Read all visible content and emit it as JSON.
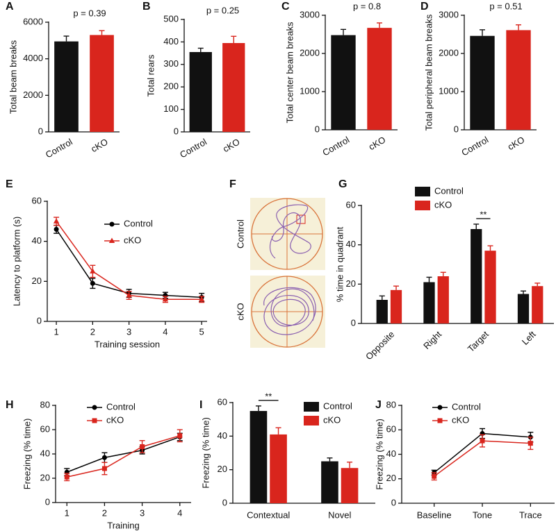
{
  "chart_data": [
    {
      "type": "bar",
      "label": "A",
      "ylabel": "Total beam breaks",
      "annotation": "p = 0.39",
      "categories": [
        "Control",
        "cKO"
      ],
      "values": [
        4950,
        5300
      ],
      "errors": [
        290,
        240
      ],
      "colors": [
        "#111111",
        "#d9251d"
      ],
      "ylim": [
        0,
        6000
      ],
      "yticks": [
        0,
        2000,
        4000,
        6000
      ]
    },
    {
      "type": "bar",
      "label": "B",
      "ylabel": "Total rears",
      "annotation": "p = 0.25",
      "categories": [
        "Control",
        "cKO"
      ],
      "values": [
        355,
        395
      ],
      "errors": [
        17,
        30
      ],
      "colors": [
        "#111111",
        "#d9251d"
      ],
      "ylim": [
        0,
        500
      ],
      "yticks": [
        0,
        100,
        200,
        300,
        400,
        500
      ]
    },
    {
      "type": "bar",
      "label": "C",
      "ylabel": "Total center beam breaks",
      "annotation": "p = 0.8",
      "categories": [
        "Control",
        "cKO"
      ],
      "values": [
        2480,
        2670
      ],
      "errors": [
        150,
        130
      ],
      "colors": [
        "#111111",
        "#d9251d"
      ],
      "ylim": [
        0,
        3000
      ],
      "yticks": [
        0,
        1000,
        2000,
        3000
      ]
    },
    {
      "type": "bar",
      "label": "D",
      "ylabel": "Total peripheral beam breaks",
      "annotation": "p = 0.51",
      "categories": [
        "Control",
        "cKO"
      ],
      "values": [
        2460,
        2610
      ],
      "errors": [
        160,
        140
      ],
      "colors": [
        "#111111",
        "#d9251d"
      ],
      "ylim": [
        0,
        3000
      ],
      "yticks": [
        0,
        1000,
        2000,
        3000
      ]
    },
    {
      "type": "line",
      "label": "E",
      "ylabel": "Latency to platform (s)",
      "xlabel": "Training session",
      "x": [
        1,
        2,
        3,
        4,
        5
      ],
      "xlim": [
        0.75,
        5.15
      ],
      "xticks": [
        1,
        2,
        3,
        4,
        5
      ],
      "series": [
        {
          "name": "Control",
          "color": "#000000",
          "marker": "circle",
          "values": [
            46,
            19,
            14,
            13,
            12
          ],
          "errors": [
            2,
            2.5,
            2,
            1.5,
            2
          ]
        },
        {
          "name": "cKO",
          "color": "#d9251d",
          "marker": "triangle",
          "values": [
            50,
            25,
            13,
            11,
            11
          ],
          "errors": [
            2,
            3,
            2,
            1.5,
            1.5
          ]
        }
      ],
      "ylim": [
        0,
        60
      ],
      "yticks": [
        0,
        20,
        40,
        60
      ]
    },
    {
      "type": "grouped_bar",
      "label": "G",
      "ylabel": "% time in quadrant",
      "annotation": "**",
      "categories": [
        "Opposite",
        "Right",
        "Target",
        "Left"
      ],
      "series": [
        {
          "name": "Control",
          "color": "#111111",
          "values": [
            12,
            21,
            48,
            15
          ],
          "errors": [
            2,
            2.5,
            2.5,
            1.5
          ]
        },
        {
          "name": "cKO",
          "color": "#d9251d",
          "values": [
            17,
            24,
            37,
            19
          ],
          "errors": [
            2,
            2,
            2.5,
            1.5
          ]
        }
      ],
      "ylim": [
        0,
        60
      ],
      "yticks": [
        0,
        20,
        40,
        60
      ]
    },
    {
      "type": "line",
      "label": "H",
      "ylabel": "Freezing (% time)",
      "xlabel": "Training",
      "x": [
        1,
        2,
        3,
        4
      ],
      "xlim": [
        0.7,
        4.3
      ],
      "xticks": [
        1,
        2,
        3,
        4
      ],
      "series": [
        {
          "name": "Control",
          "color": "#000000",
          "marker": "circle",
          "values": [
            25,
            37,
            43,
            54
          ],
          "errors": [
            3,
            4,
            3,
            3
          ]
        },
        {
          "name": "cKO",
          "color": "#d9251d",
          "marker": "square",
          "values": [
            21,
            28,
            46,
            55
          ],
          "errors": [
            3,
            5,
            5,
            5
          ]
        }
      ],
      "ylim": [
        0,
        80
      ],
      "yticks": [
        0,
        20,
        40,
        60,
        80
      ]
    },
    {
      "type": "grouped_bar",
      "label": "I",
      "ylabel": "Freezing (% time)",
      "annotation": "**",
      "categories": [
        "Contextual",
        "Novel"
      ],
      "series": [
        {
          "name": "Control",
          "color": "#111111",
          "values": [
            55,
            25
          ],
          "errors": [
            3,
            2
          ]
        },
        {
          "name": "cKO",
          "color": "#d9251d",
          "values": [
            41,
            21
          ],
          "errors": [
            4,
            3.5
          ]
        }
      ],
      "ylim": [
        0,
        60
      ],
      "yticks": [
        0,
        20,
        40,
        60
      ]
    },
    {
      "type": "line",
      "label": "J",
      "ylabel": "Freezing (% time)",
      "categories": [
        "Baseline",
        "Tone",
        "Trace"
      ],
      "series": [
        {
          "name": "Control",
          "color": "#000000",
          "marker": "circle",
          "values": [
            25,
            57,
            54
          ],
          "errors": [
            2,
            4,
            4
          ]
        },
        {
          "name": "cKO",
          "color": "#d9251d",
          "marker": "square",
          "values": [
            22,
            51,
            49
          ],
          "errors": [
            3,
            5,
            5
          ]
        }
      ],
      "ylim": [
        0,
        80
      ],
      "yticks": [
        0,
        20,
        40,
        60,
        80
      ]
    }
  ],
  "panel_f": {
    "label": "F",
    "rows": [
      "Control",
      "cKO"
    ]
  }
}
